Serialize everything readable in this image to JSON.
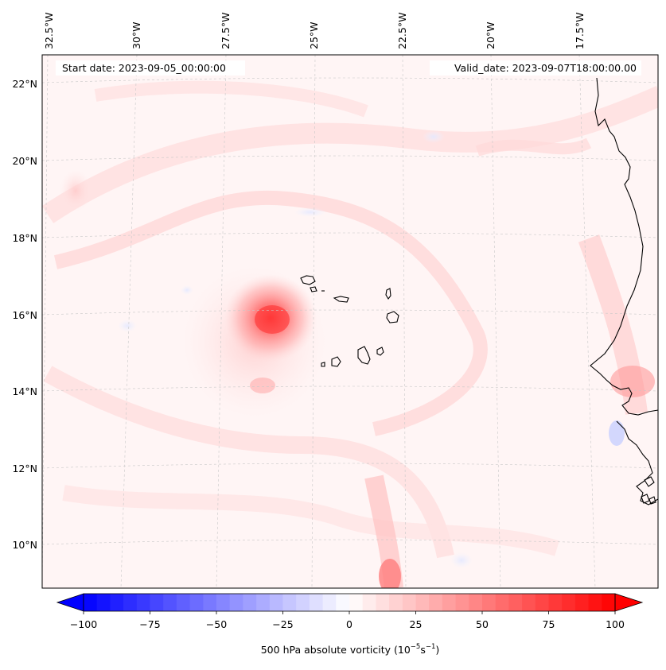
{
  "map": {
    "start_label": "Start date: 2023-09-05_00:00:00",
    "valid_label": "Valid_date: 2023-09-07T18:00:00.00",
    "lon_labels": [
      "32.5°W",
      "30°W",
      "27.5°W",
      "25°W",
      "22.5°W",
      "20°W",
      "17.5°W"
    ],
    "lat_labels": [
      "22°N",
      "20°N",
      "18°N",
      "16°N",
      "14°N",
      "12°N",
      "10°N"
    ]
  },
  "colorbar": {
    "tick_labels": [
      "−100",
      "−75",
      "−50",
      "−25",
      "0",
      "25",
      "50",
      "75",
      "100"
    ],
    "label_main": "500 hPa absolute vorticity (10",
    "label_exp1": "−5",
    "label_mid": "s",
    "label_exp2": "−1",
    "label_end": ")"
  },
  "colors": {
    "negative_max": "#0000ff",
    "positive_max": "#ff0000",
    "neutral": "#ffffff"
  }
}
